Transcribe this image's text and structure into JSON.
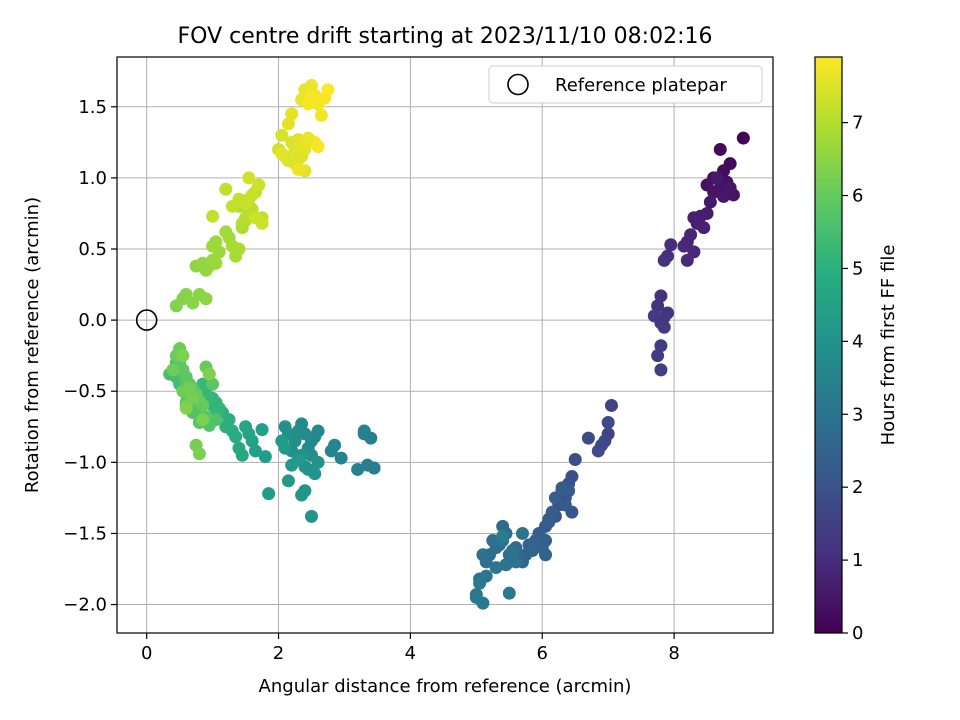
{
  "chart_data": {
    "type": "scatter",
    "title": "FOV centre drift starting at 2023/11/10 08:02:16",
    "xlabel": "Angular distance from reference (arcmin)",
    "ylabel": "Rotation from reference (arcmin)",
    "xlim": [
      -0.45,
      9.5
    ],
    "ylim": [
      -2.2,
      1.85
    ],
    "xticks": [
      "0",
      "2",
      "4",
      "6",
      "8"
    ],
    "yticks": [
      "−2.0",
      "−1.5",
      "−1.0",
      "−0.5",
      "0.0",
      "0.5",
      "1.0",
      "1.5"
    ],
    "grid": true,
    "legend": {
      "position": "top-right",
      "entries": [
        "Reference platepar"
      ]
    },
    "reference_point": {
      "label": "Reference platepar",
      "x": 0,
      "y": 0
    },
    "colorbar": {
      "label": "Hours from first FF file",
      "min": 0,
      "max": 7.9,
      "ticks": [
        "0",
        "1",
        "2",
        "3",
        "4",
        "5",
        "6",
        "7"
      ],
      "colormap": "viridis"
    },
    "series": [
      {
        "x": [
          9.05,
          8.7,
          8.85,
          8.75,
          8.6,
          8.8,
          8.7,
          8.5,
          8.9,
          8.6,
          8.75,
          8.85,
          8.55,
          8.65,
          8.5,
          8.4,
          8.35,
          8.3,
          8.45,
          8.25,
          8.2,
          8.15,
          8.3,
          8.2,
          7.95,
          7.9,
          7.85,
          7.8,
          7.75,
          7.9,
          7.85,
          7.8,
          7.7,
          7.85,
          7.8,
          7.75,
          7.8
        ],
        "y": [
          1.28,
          1.2,
          1.1,
          1.05,
          1.0,
          0.97,
          0.93,
          0.95,
          0.88,
          0.9,
          0.87,
          0.93,
          0.83,
          1.0,
          0.75,
          0.73,
          0.68,
          0.72,
          0.65,
          0.6,
          0.55,
          0.52,
          0.48,
          0.42,
          0.53,
          0.45,
          0.42,
          0.17,
          0.1,
          0.05,
          0.02,
          -0.02,
          0.03,
          -0.05,
          -0.18,
          -0.25,
          -0.35
        ],
        "hours": [
          0.05,
          0.15,
          0.2,
          0.25,
          0.3,
          0.35,
          0.4,
          0.4,
          0.45,
          0.45,
          0.5,
          0.5,
          0.55,
          0.55,
          0.6,
          0.65,
          0.7,
          0.7,
          0.75,
          0.8,
          0.85,
          0.9,
          0.9,
          0.95,
          1.0,
          1.05,
          1.1,
          1.15,
          1.2,
          1.2,
          1.25,
          1.3,
          1.35,
          1.35,
          1.4,
          1.4,
          1.45
        ]
      },
      {
        "x": [
          7.05,
          7.0,
          6.95,
          6.9,
          6.85,
          7.0,
          6.7,
          6.5,
          6.45,
          6.4,
          6.3,
          6.35,
          6.25,
          6.45,
          6.2,
          6.1,
          6.05,
          6.35,
          6.4,
          6.3,
          6.2,
          6.15,
          6.1,
          6.05,
          5.95,
          5.9,
          6.0,
          6.05,
          5.8,
          5.85,
          5.75,
          5.7,
          5.65,
          5.6,
          5.55,
          5.5,
          5.45,
          5.4,
          5.35,
          5.3,
          5.25,
          5.2,
          5.15,
          5.1,
          5.05,
          5.0,
          5.55,
          5.45,
          5.6,
          5.7,
          5.4,
          5.3,
          5.15,
          5.05,
          5.0,
          5.1,
          5.5,
          5.4
        ],
        "y": [
          -0.6,
          -0.8,
          -0.85,
          -0.88,
          -0.92,
          -0.72,
          -0.83,
          -0.98,
          -1.1,
          -1.15,
          -1.2,
          -1.25,
          -1.3,
          -1.35,
          -1.38,
          -1.4,
          -1.45,
          -1.3,
          -1.2,
          -1.18,
          -1.25,
          -1.35,
          -1.42,
          -1.55,
          -1.5,
          -1.55,
          -1.6,
          -1.65,
          -1.58,
          -1.62,
          -1.65,
          -1.7,
          -1.68,
          -1.6,
          -1.62,
          -1.65,
          -1.5,
          -1.45,
          -1.58,
          -1.6,
          -1.55,
          -1.65,
          -1.7,
          -1.65,
          -1.82,
          -1.93,
          -1.63,
          -1.72,
          -1.7,
          -1.5,
          -1.55,
          -1.74,
          -1.8,
          -1.85,
          -1.95,
          -1.99,
          -1.92,
          -1.52
        ],
        "hours": [
          1.55,
          1.6,
          1.65,
          1.7,
          1.75,
          1.75,
          1.8,
          1.85,
          1.9,
          1.95,
          2.0,
          2.0,
          2.05,
          2.1,
          2.15,
          2.15,
          2.2,
          2.2,
          2.25,
          2.25,
          2.3,
          2.3,
          2.35,
          2.35,
          2.4,
          2.45,
          2.45,
          2.5,
          2.5,
          2.55,
          2.55,
          2.6,
          2.6,
          2.65,
          2.65,
          2.7,
          2.75,
          2.75,
          2.8,
          2.8,
          2.85,
          2.85,
          2.9,
          2.9,
          2.95,
          3.0,
          3.0,
          3.05,
          3.05,
          3.1,
          3.1,
          3.15,
          3.15,
          3.2,
          3.2,
          3.25,
          3.25,
          3.3
        ]
      },
      {
        "x": [
          3.45,
          3.35,
          3.3,
          3.4,
          3.3,
          3.2,
          2.95,
          2.85,
          2.8,
          2.6,
          2.55,
          2.5,
          2.45,
          2.4,
          2.35,
          2.5,
          2.3,
          2.25,
          2.2,
          2.15,
          2.1,
          2.35,
          2.4,
          2.45,
          2.6,
          2.55,
          2.5,
          2.4,
          2.35,
          2.15,
          2.2,
          2.3,
          2.05,
          2.1,
          1.85,
          1.8,
          1.75,
          1.65,
          1.6,
          1.55,
          1.5,
          1.45,
          1.4,
          1.35,
          1.3,
          1.25,
          1.2,
          1.15,
          1.1,
          1.05,
          1.0
        ],
        "y": [
          -1.04,
          -1.02,
          -0.78,
          -0.83,
          -0.8,
          -1.05,
          -0.97,
          -0.88,
          -0.92,
          -0.78,
          -0.82,
          -0.85,
          -0.9,
          -0.8,
          -0.73,
          -0.95,
          -0.78,
          -0.85,
          -0.92,
          -0.8,
          -0.75,
          -0.95,
          -1.03,
          -1.05,
          -1.0,
          -1.08,
          -1.38,
          -1.2,
          -1.23,
          -1.13,
          -1.02,
          -0.98,
          -0.85,
          -0.9,
          -1.22,
          -0.96,
          -0.77,
          -0.92,
          -0.85,
          -0.8,
          -0.75,
          -0.95,
          -0.9,
          -0.82,
          -0.78,
          -0.7,
          -0.75,
          -0.65,
          -0.62,
          -0.58,
          -0.55
        ],
        "hours": [
          3.35,
          3.4,
          3.4,
          3.45,
          3.45,
          3.5,
          3.55,
          3.6,
          3.65,
          3.7,
          3.7,
          3.75,
          3.75,
          3.8,
          3.8,
          3.85,
          3.85,
          3.9,
          3.9,
          3.95,
          3.95,
          4.0,
          4.0,
          4.05,
          4.05,
          4.1,
          4.1,
          4.15,
          4.15,
          4.2,
          4.2,
          4.25,
          4.25,
          4.3,
          4.35,
          4.4,
          4.45,
          4.5,
          4.55,
          4.6,
          4.65,
          4.7,
          4.75,
          4.8,
          4.85,
          4.9,
          4.95,
          5.0,
          5.05,
          5.1,
          5.15
        ]
      },
      {
        "x": [
          1.1,
          1.05,
          1.0,
          0.95,
          0.9,
          0.85,
          0.8,
          0.75,
          0.7,
          0.65,
          0.6,
          0.55,
          0.5,
          0.45,
          0.4,
          0.35,
          0.45,
          0.55,
          0.65,
          0.75,
          0.85,
          0.95,
          1.05,
          0.6,
          0.7,
          0.8,
          0.9,
          1.0,
          0.5,
          0.55,
          0.6,
          0.65,
          0.7,
          0.75,
          0.8,
          0.85,
          0.9,
          0.5,
          0.45,
          0.4,
          0.55,
          0.6,
          0.65,
          0.7,
          0.75,
          0.8,
          0.85,
          0.95,
          0.55,
          0.6
        ],
        "y": [
          -0.62,
          -0.66,
          -0.6,
          -0.55,
          -0.48,
          -0.45,
          -0.5,
          -0.55,
          -0.62,
          -0.58,
          -0.52,
          -0.48,
          -0.45,
          -0.4,
          -0.35,
          -0.38,
          -0.3,
          -0.42,
          -0.5,
          -0.65,
          -0.7,
          -0.74,
          -0.7,
          -0.58,
          -0.65,
          -0.72,
          -0.68,
          -0.45,
          -0.3,
          -0.35,
          -0.4,
          -0.45,
          -0.48,
          -0.52,
          -0.57,
          -0.6,
          -0.33,
          -0.2,
          -0.25,
          -0.35,
          -0.5,
          -0.6,
          -0.48,
          -0.55,
          -0.88,
          -0.94,
          -0.7,
          -0.38,
          -0.25,
          -0.62
        ],
        "hours": [
          5.15,
          5.2,
          5.2,
          5.25,
          5.25,
          5.3,
          5.3,
          5.35,
          5.35,
          5.4,
          5.4,
          5.45,
          5.45,
          5.5,
          5.5,
          5.55,
          5.55,
          5.6,
          5.6,
          5.65,
          5.65,
          5.7,
          5.7,
          5.75,
          5.75,
          5.8,
          5.8,
          5.85,
          5.85,
          5.9,
          5.9,
          5.95,
          5.95,
          6.0,
          6.0,
          6.05,
          6.05,
          6.1,
          6.1,
          6.15,
          6.15,
          6.2,
          6.2,
          6.25,
          6.25,
          6.3,
          6.3,
          6.35,
          6.35,
          6.4
        ]
      },
      {
        "x": [
          0.45,
          0.55,
          0.6,
          0.7,
          0.8,
          0.9,
          0.75,
          0.85,
          0.9,
          0.95,
          1.0,
          1.05,
          1.1,
          1.0,
          1.05,
          1.2,
          1.25,
          1.3,
          1.35,
          1.4,
          1.45,
          1.5,
          1.55,
          1.4,
          1.45,
          1.5,
          1.55,
          1.6,
          1.65,
          1.7,
          1.75,
          1.2,
          1.0,
          1.3,
          1.4,
          1.5,
          1.6,
          1.7,
          1.75,
          1.65,
          1.55
        ],
        "y": [
          0.1,
          0.15,
          0.18,
          0.12,
          0.18,
          0.15,
          0.38,
          0.4,
          0.35,
          0.38,
          0.42,
          0.4,
          0.48,
          0.52,
          0.55,
          0.62,
          0.58,
          0.52,
          0.45,
          0.5,
          0.65,
          0.7,
          0.75,
          0.8,
          0.68,
          0.72,
          0.85,
          0.78,
          0.9,
          0.95,
          0.72,
          0.92,
          0.73,
          0.8,
          0.85,
          0.82,
          0.88,
          0.95,
          0.68,
          0.72,
          1.0
        ],
        "hours": [
          6.4,
          6.45,
          6.45,
          6.5,
          6.5,
          6.55,
          6.55,
          6.6,
          6.6,
          6.65,
          6.65,
          6.7,
          6.7,
          6.75,
          6.75,
          6.8,
          6.8,
          6.85,
          6.85,
          6.9,
          6.9,
          6.95,
          6.95,
          7.0,
          7.0,
          7.05,
          7.05,
          7.1,
          7.1,
          7.15,
          7.15,
          7.15,
          7.2,
          7.2,
          7.2,
          7.25,
          7.25,
          7.3,
          7.3,
          7.3,
          7.35
        ]
      },
      {
        "x": [
          2.0,
          2.1,
          2.05,
          2.2,
          2.25,
          2.3,
          2.35,
          2.4,
          2.15,
          2.2,
          2.35,
          2.4,
          2.5,
          2.55,
          2.6,
          2.65,
          2.45,
          2.5,
          2.55,
          2.6,
          2.7,
          2.75,
          2.15,
          2.25,
          2.3,
          2.4,
          2.05,
          2.35,
          2.45,
          2.3
        ],
        "y": [
          1.2,
          1.15,
          1.3,
          1.25,
          1.2,
          1.27,
          1.15,
          1.05,
          1.38,
          1.45,
          1.55,
          1.62,
          1.65,
          1.58,
          1.52,
          1.44,
          1.52,
          1.58,
          1.25,
          1.22,
          1.56,
          1.62,
          1.12,
          1.1,
          1.13,
          1.2,
          1.17,
          1.24,
          1.28,
          1.06
        ],
        "hours": [
          7.4,
          7.4,
          7.45,
          7.45,
          7.5,
          7.5,
          7.55,
          7.55,
          7.6,
          7.6,
          7.65,
          7.65,
          7.7,
          7.7,
          7.75,
          7.75,
          7.8,
          7.8,
          7.8,
          7.82,
          7.84,
          7.86,
          7.5,
          7.52,
          7.54,
          7.56,
          7.58,
          7.62,
          7.66,
          7.7
        ]
      }
    ]
  }
}
